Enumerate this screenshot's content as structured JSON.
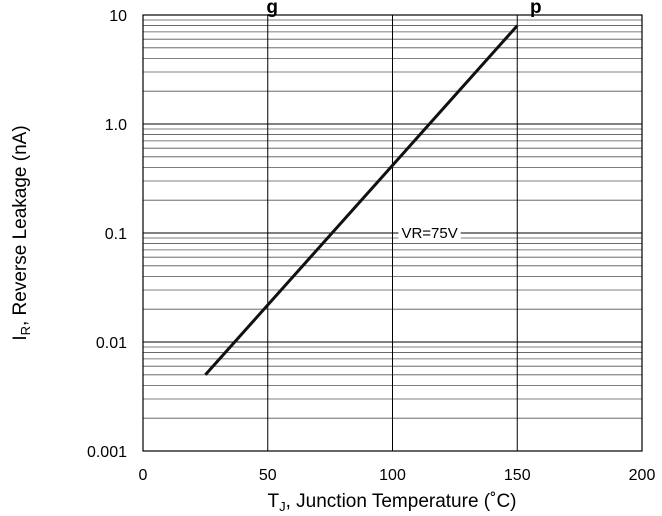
{
  "chart_data": {
    "type": "line",
    "title_left_fragment": "g",
    "title_right_fragment": "p",
    "xlabel": {
      "main": "T",
      "sub": "J",
      "rest": ", Junction Temperature (˚C)"
    },
    "ylabel": {
      "main": "I",
      "sub": "R",
      "rest": ", Reverse Leakage (nA)"
    },
    "xlim": [
      0,
      200
    ],
    "ylim": [
      0.001,
      10
    ],
    "yscale": "log",
    "grid": true,
    "x_ticks": [
      0,
      50,
      100,
      150,
      200
    ],
    "x_tick_labels": [
      "0",
      "50",
      "100",
      "150",
      "200"
    ],
    "y_ticks": [
      0.001,
      0.01,
      0.1,
      1,
      10
    ],
    "y_tick_labels": [
      "0.001",
      "0.01",
      "0.1",
      "1.0",
      "10"
    ],
    "series": [
      {
        "x": [
          25,
          150
        ],
        "y": [
          0.005,
          8
        ]
      }
    ],
    "annotation": {
      "text": "VR=75V",
      "x": 110,
      "y": 0.1
    }
  }
}
